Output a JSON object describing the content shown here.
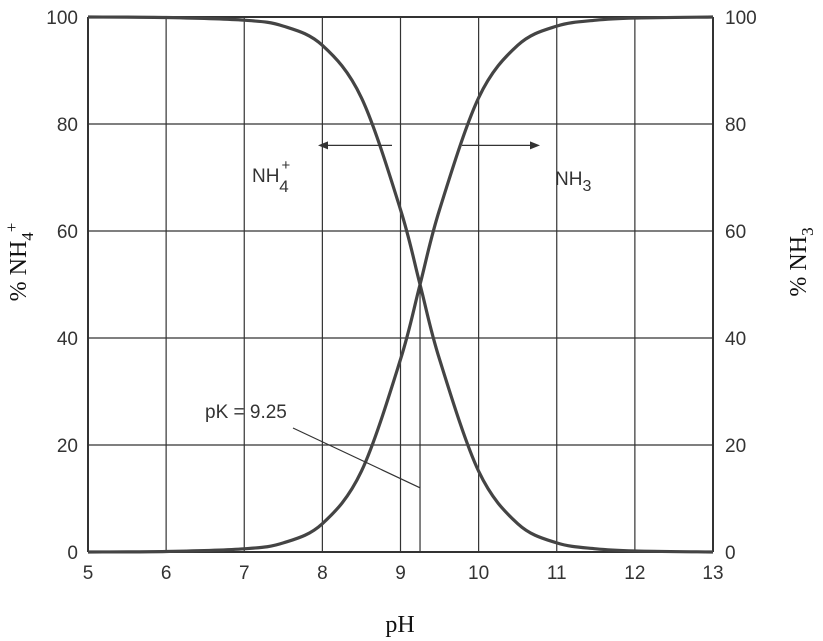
{
  "chart_data": {
    "type": "line",
    "xlabel": "pH",
    "ylabel_left": {
      "main": "% NH",
      "sub": "4",
      "sup": "+"
    },
    "ylabel_right": {
      "main": "% NH",
      "sub": "3"
    },
    "xlim": [
      5,
      13
    ],
    "ylim": [
      0,
      100
    ],
    "xticks": [
      "5",
      "6",
      "7",
      "8",
      "9",
      "10",
      "11",
      "12",
      "13"
    ],
    "yticks": [
      "0",
      "20",
      "40",
      "60",
      "80",
      "100"
    ],
    "grid": true,
    "x": [
      5,
      6,
      7,
      7.5,
      8,
      8.5,
      9,
      9.25,
      9.5,
      10,
      10.5,
      11,
      11.5,
      12,
      13
    ],
    "series": [
      {
        "name": "NH4+",
        "label": {
          "main": "NH",
          "sub": "4",
          "sup": "+"
        },
        "values": [
          100,
          99.9,
          99.4,
          98.3,
          94.7,
          84.9,
          64.0,
          50,
          36.0,
          15.1,
          5.3,
          1.7,
          0.6,
          0.2,
          0
        ]
      },
      {
        "name": "NH3",
        "label": {
          "main": "NH",
          "sub": "3"
        },
        "values": [
          0,
          0.1,
          0.6,
          1.7,
          5.3,
          15.1,
          36.0,
          50,
          64.0,
          84.9,
          94.7,
          98.3,
          99.4,
          99.8,
          100
        ]
      }
    ],
    "annotations": {
      "pk_label": "pK = 9.25",
      "pk_value": 9.25
    },
    "colors": {
      "curve": "#444444",
      "grid": "#333333"
    }
  }
}
